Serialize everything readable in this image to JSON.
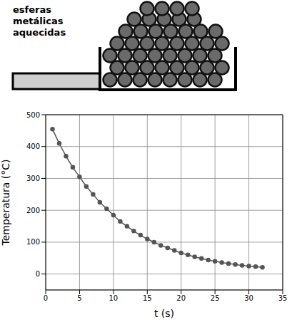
{
  "chart_data": {
    "type": "line",
    "annotation": "esferas metálicas aquecidas",
    "x_label": "t (s)",
    "y_label": "Temperatura (°C)",
    "x": [
      1,
      2,
      3,
      4,
      5,
      6,
      7,
      8,
      9,
      10,
      11,
      12,
      13,
      14,
      15,
      16,
      17,
      18,
      19,
      20,
      21,
      22,
      23,
      24,
      25,
      26,
      27,
      28,
      29,
      30,
      31,
      32
    ],
    "series": [
      {
        "name": "Temperatura",
        "color": "#555555",
        "marker": "circle",
        "line_style": "solid",
        "values": [
          455,
          410,
          370,
          335,
          305,
          275,
          250,
          225,
          205,
          185,
          165,
          150,
          135,
          122,
          110,
          100,
          90,
          82,
          74,
          66,
          60,
          54,
          49,
          44,
          40,
          36,
          33,
          30,
          27,
          25,
          23,
          21
        ]
      }
    ],
    "xlim": [
      0,
      35
    ],
    "xticks": [
      0,
      5,
      10,
      15,
      20,
      25,
      30,
      35
    ],
    "ylim": [
      -50,
      500
    ],
    "yticks": [
      0,
      100,
      200,
      300,
      400,
      500
    ],
    "grid": true
  }
}
